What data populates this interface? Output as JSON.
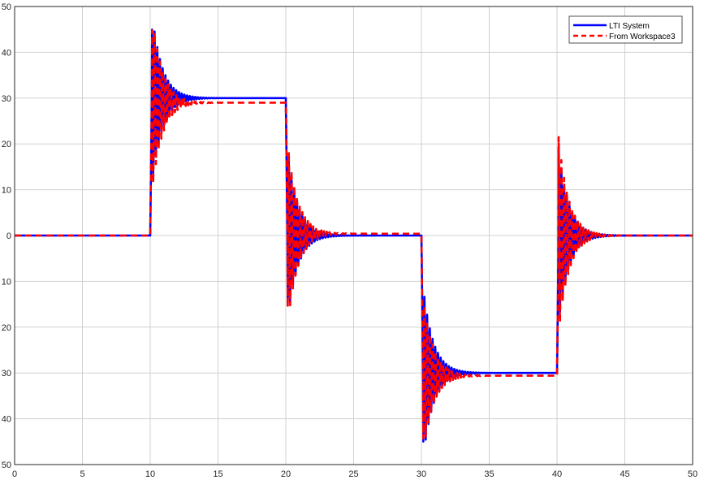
{
  "chart_data": {
    "type": "line",
    "title": "",
    "xlabel": "",
    "ylabel": "",
    "xlim": [
      0,
      50
    ],
    "ylim": [
      -50,
      50
    ],
    "xticks": [
      0,
      5,
      10,
      15,
      20,
      25,
      30,
      35,
      40,
      45,
      50
    ],
    "yticks": [
      -50,
      -40,
      -30,
      -20,
      -10,
      0,
      10,
      20,
      30,
      40,
      50
    ],
    "x_tick_labels": [
      "0",
      "5",
      "10",
      "15",
      "20",
      "25",
      "30",
      "35",
      "40",
      "45",
      "50"
    ],
    "y_tick_labels": [
      "50",
      "40",
      "30",
      "20",
      "10",
      "0",
      "10",
      "20",
      "30",
      "40",
      "50"
    ],
    "grid": true,
    "legend_position": "top-right",
    "series": [
      {
        "name": "LTI System",
        "color": "#0000ff",
        "style": "solid",
        "level_segments": [
          {
            "from": 0,
            "to": 10,
            "value": 0
          },
          {
            "from": 10,
            "to": 20,
            "value": 30
          },
          {
            "from": 20,
            "to": 30,
            "value": 0
          },
          {
            "from": 30,
            "to": 40,
            "value": -30
          },
          {
            "from": 40,
            "to": 50,
            "value": 0
          }
        ],
        "transient_peaks": [
          {
            "t": 10.15,
            "value": 49
          },
          {
            "t": 20.3,
            "value": -19
          },
          {
            "t": 30.1,
            "value": -49
          },
          {
            "t": 40.3,
            "value": 19
          }
        ]
      },
      {
        "name": "From Workspace3",
        "color": "#ff0000",
        "style": "dashed",
        "level_segments": [
          {
            "from": 0,
            "to": 10,
            "value": 0
          },
          {
            "from": 10,
            "to": 20,
            "value": 29
          },
          {
            "from": 20,
            "to": 30,
            "value": 0.4
          },
          {
            "from": 30,
            "to": 40,
            "value": -30.6
          },
          {
            "from": 40,
            "to": 50,
            "value": 0
          }
        ],
        "transient_peaks": [
          {
            "t": 10.2,
            "value": 49
          },
          {
            "t": 20.45,
            "value": -20
          },
          {
            "t": 30.25,
            "value": -48
          },
          {
            "t": 40.45,
            "value": 21.5
          }
        ]
      }
    ]
  }
}
